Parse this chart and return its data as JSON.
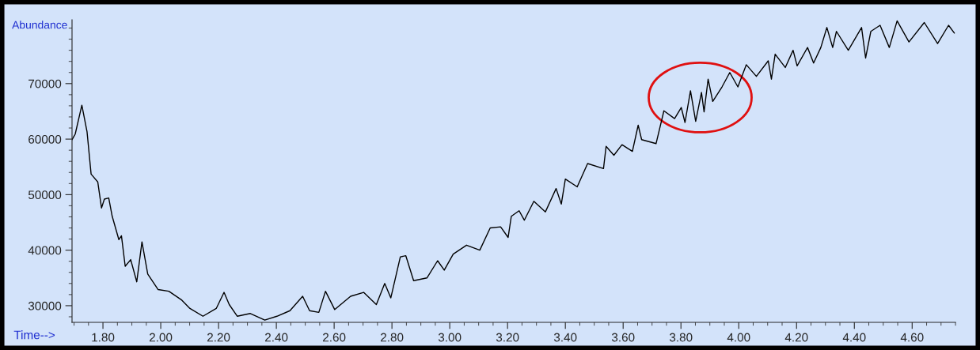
{
  "chart_data": {
    "type": "line",
    "xlabel": "Time-->",
    "ylabel": "Abundance",
    "x": [
      1.693,
      1.704,
      1.727,
      1.745,
      1.759,
      1.782,
      1.795,
      1.805,
      1.82,
      1.832,
      1.855,
      1.864,
      1.877,
      1.896,
      1.917,
      1.935,
      1.955,
      1.991,
      2.028,
      2.073,
      2.101,
      2.146,
      2.192,
      2.219,
      2.237,
      2.265,
      2.31,
      2.36,
      2.402,
      2.447,
      2.491,
      2.515,
      2.547,
      2.57,
      2.602,
      2.657,
      2.702,
      2.746,
      2.775,
      2.796,
      2.829,
      2.848,
      2.875,
      2.921,
      2.958,
      2.981,
      3.012,
      3.058,
      3.104,
      3.14,
      3.176,
      3.202,
      3.213,
      3.24,
      3.258,
      3.291,
      3.331,
      3.368,
      3.386,
      3.4,
      3.441,
      3.477,
      3.532,
      3.541,
      3.568,
      3.596,
      3.632,
      3.652,
      3.664,
      3.714,
      3.741,
      3.778,
      3.801,
      3.814,
      3.833,
      3.851,
      3.871,
      3.88,
      3.894,
      3.91,
      3.942,
      3.969,
      3.997,
      4.026,
      4.061,
      4.102,
      4.113,
      4.126,
      4.161,
      4.188,
      4.202,
      4.238,
      4.259,
      4.284,
      4.305,
      4.325,
      4.338,
      4.379,
      4.425,
      4.439,
      4.457,
      4.489,
      4.521,
      4.548,
      4.589,
      4.642,
      4.688,
      4.726,
      4.746
    ],
    "series": [
      {
        "color": "#000000",
        "values": [
          59900,
          60900,
          66100,
          61300,
          53700,
          52300,
          47600,
          49200,
          49400,
          46100,
          41900,
          42600,
          37100,
          38300,
          34300,
          41500,
          35700,
          32900,
          32600,
          31000,
          29500,
          28100,
          29500,
          32400,
          30200,
          28100,
          28600,
          27400,
          28100,
          29100,
          31700,
          29100,
          28800,
          32600,
          29300,
          31700,
          32400,
          30200,
          34000,
          31400,
          38800,
          39000,
          34500,
          35000,
          38100,
          36400,
          39300,
          40900,
          40000,
          44000,
          44200,
          42300,
          46100,
          47100,
          45400,
          48800,
          46900,
          51100,
          48300,
          52800,
          51400,
          55600,
          54700,
          58700,
          57100,
          59000,
          57800,
          62500,
          59900,
          59200,
          65100,
          63700,
          65700,
          63000,
          68700,
          63200,
          68400,
          64900,
          70800,
          66800,
          69400,
          72000,
          69400,
          73400,
          71300,
          74100,
          70800,
          75300,
          72900,
          76000,
          73200,
          76500,
          73700,
          76500,
          80100,
          76500,
          79400,
          76000,
          80100,
          74600,
          79400,
          80500,
          76500,
          81300,
          77500,
          81000,
          77200,
          80500,
          79100
        ]
      }
    ],
    "xlim": [
      1.693,
      4.75
    ],
    "ylim": [
      27000,
      81500
    ],
    "xticks": [
      {
        "value": 1.8,
        "label": "1.80"
      },
      {
        "value": 2.0,
        "label": "2.00"
      },
      {
        "value": 2.2,
        "label": "2.20"
      },
      {
        "value": 2.4,
        "label": "2.40"
      },
      {
        "value": 2.6,
        "label": "2.60"
      },
      {
        "value": 2.8,
        "label": "2.80"
      },
      {
        "value": 3.0,
        "label": "3.00"
      },
      {
        "value": 3.2,
        "label": "3.20"
      },
      {
        "value": 3.4,
        "label": "3.40"
      },
      {
        "value": 3.6,
        "label": "3.60"
      },
      {
        "value": 3.8,
        "label": "3.80"
      },
      {
        "value": 4.0,
        "label": "4.00"
      },
      {
        "value": 4.2,
        "label": "4.20"
      },
      {
        "value": 4.4,
        "label": "4.40"
      },
      {
        "value": 4.6,
        "label": "4.60"
      }
    ],
    "yticks": [
      30000,
      40000,
      50000,
      60000,
      70000
    ],
    "grid": false,
    "marker": "none",
    "line_style": "solid"
  }
}
